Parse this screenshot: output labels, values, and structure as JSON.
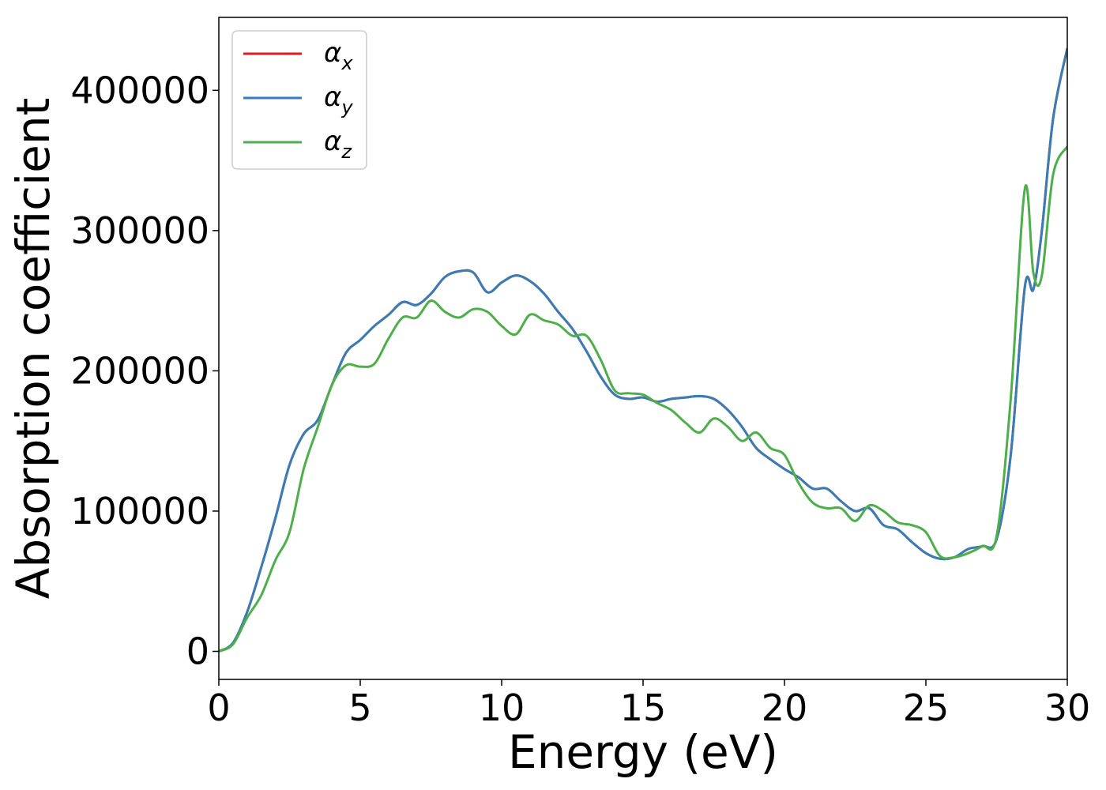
{
  "chart_data": {
    "type": "line",
    "title": "",
    "xlabel": "Energy (eV)",
    "ylabel": "Absorption coefficient",
    "xlim": [
      0,
      30
    ],
    "ylim": [
      -20000,
      452000
    ],
    "xticks": [
      0,
      5,
      10,
      15,
      20,
      25,
      30
    ],
    "yticks": [
      0,
      100000,
      200000,
      300000,
      400000
    ],
    "xtick_labels": [
      "0",
      "5",
      "10",
      "15",
      "20",
      "25",
      "30"
    ],
    "ytick_labels": [
      "0",
      "100000",
      "200000",
      "300000",
      "400000"
    ],
    "grid": false,
    "legend_position": "top-left",
    "series": [
      {
        "name": "αx",
        "symbol": "α",
        "subscript": "x",
        "color": "#e41a1c",
        "x": [
          0,
          0.5,
          1,
          1.5,
          2,
          2.5,
          3,
          3.5,
          4,
          4.5,
          5,
          5.5,
          6,
          6.5,
          7,
          7.5,
          8,
          8.5,
          9,
          9.5,
          10,
          10.5,
          11,
          11.5,
          12,
          12.5,
          13,
          13.5,
          14,
          14.5,
          15,
          15.5,
          16,
          16.5,
          17,
          17.5,
          18,
          18.5,
          19,
          19.5,
          20,
          20.5,
          21,
          21.5,
          22,
          22.5,
          23,
          23.5,
          24,
          24.5,
          25,
          25.5,
          26,
          26.5,
          27,
          27.5,
          28,
          28.5,
          28.8,
          29.1,
          29.5,
          30
        ],
        "y": [
          0,
          6000,
          28000,
          60000,
          95000,
          133000,
          155000,
          165000,
          190000,
          213000,
          222000,
          232000,
          240000,
          249000,
          247000,
          255000,
          267000,
          271000,
          270000,
          256000,
          263000,
          268000,
          264000,
          255000,
          242000,
          230000,
          214000,
          196000,
          183000,
          180000,
          181000,
          178000,
          180000,
          181000,
          182000,
          180000,
          172000,
          160000,
          145000,
          137000,
          130000,
          124000,
          116000,
          116000,
          107000,
          100000,
          102000,
          90000,
          87000,
          78000,
          70000,
          66000,
          67000,
          73000,
          75000,
          80000,
          140000,
          260000,
          258000,
          300000,
          380000,
          430000
        ]
      },
      {
        "name": "αy",
        "symbol": "α",
        "subscript": "y",
        "color": "#377eb8",
        "x": [
          0,
          0.5,
          1,
          1.5,
          2,
          2.5,
          3,
          3.5,
          4,
          4.5,
          5,
          5.5,
          6,
          6.5,
          7,
          7.5,
          8,
          8.5,
          9,
          9.5,
          10,
          10.5,
          11,
          11.5,
          12,
          12.5,
          13,
          13.5,
          14,
          14.5,
          15,
          15.5,
          16,
          16.5,
          17,
          17.5,
          18,
          18.5,
          19,
          19.5,
          20,
          20.5,
          21,
          21.5,
          22,
          22.5,
          23,
          23.5,
          24,
          24.5,
          25,
          25.5,
          26,
          26.5,
          27,
          27.5,
          28,
          28.5,
          28.8,
          29.1,
          29.5,
          30
        ],
        "y": [
          0,
          6000,
          28000,
          60000,
          95000,
          133000,
          155000,
          165000,
          190000,
          213000,
          222000,
          232000,
          240000,
          249000,
          247000,
          255000,
          267000,
          271000,
          270000,
          256000,
          263000,
          268000,
          264000,
          255000,
          242000,
          230000,
          214000,
          196000,
          183000,
          180000,
          181000,
          178000,
          180000,
          181000,
          182000,
          180000,
          172000,
          160000,
          145000,
          137000,
          130000,
          124000,
          116000,
          116000,
          107000,
          100000,
          102000,
          90000,
          87000,
          78000,
          70000,
          66000,
          67000,
          73000,
          75000,
          80000,
          140000,
          260000,
          258000,
          300000,
          380000,
          430000
        ]
      },
      {
        "name": "αz",
        "symbol": "α",
        "subscript": "z",
        "color": "#4daf4a",
        "x": [
          0,
          0.5,
          1,
          1.5,
          2,
          2.5,
          3,
          3.5,
          4,
          4.5,
          5,
          5.5,
          6,
          6.5,
          7,
          7.5,
          8,
          8.5,
          9,
          9.5,
          10,
          10.5,
          11,
          11.5,
          12,
          12.5,
          13,
          13.5,
          14,
          14.5,
          15,
          15.5,
          16,
          16.5,
          17,
          17.5,
          18,
          18.5,
          19,
          19.5,
          20,
          20.5,
          21,
          21.5,
          22,
          22.5,
          23,
          23.5,
          24,
          24.5,
          25,
          25.5,
          26,
          26.5,
          27,
          27.5,
          28,
          28.5,
          28.8,
          29.1,
          29.5,
          30
        ],
        "y": [
          0,
          5000,
          24000,
          40000,
          65000,
          85000,
          130000,
          160000,
          190000,
          204000,
          203000,
          205000,
          223000,
          238000,
          238000,
          250000,
          242000,
          238000,
          244000,
          242000,
          232000,
          226000,
          240000,
          236000,
          233000,
          225000,
          225000,
          208000,
          186000,
          184000,
          183000,
          177000,
          172000,
          163000,
          156000,
          166000,
          160000,
          150000,
          156000,
          145000,
          140000,
          120000,
          106000,
          102000,
          102000,
          93000,
          104000,
          100000,
          92000,
          90000,
          85000,
          68000,
          67000,
          70000,
          75000,
          82000,
          180000,
          330000,
          270000,
          268000,
          340000,
          360000
        ]
      }
    ]
  }
}
